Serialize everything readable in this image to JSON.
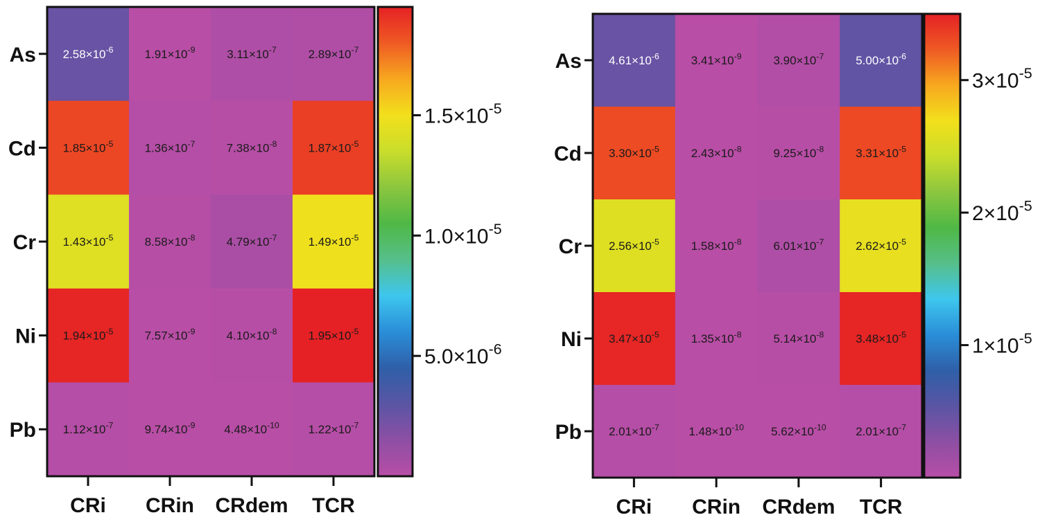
{
  "chart_data": [
    {
      "type": "heatmap",
      "rows": [
        "As",
        "Cd",
        "Cr",
        "Ni",
        "Pb"
      ],
      "columns": [
        "CRi",
        "CRin",
        "CRdem",
        "TCR"
      ],
      "values": [
        [
          2.58e-06,
          1.91e-09,
          3.11e-07,
          2.89e-07
        ],
        [
          1.85e-05,
          1.36e-07,
          7.38e-08,
          1.87e-05
        ],
        [
          1.43e-05,
          8.58e-08,
          4.79e-07,
          1.49e-05
        ],
        [
          1.94e-05,
          7.57e-09,
          4.1e-08,
          1.95e-05
        ],
        [
          1.12e-07,
          9.74e-09,
          4.48e-10,
          1.22e-07
        ]
      ],
      "labels": [
        [
          [
            "2.58×10",
            "-6"
          ],
          [
            "1.91×10",
            "-9"
          ],
          [
            "3.11×10",
            "-7"
          ],
          [
            "2.89×10",
            "-7"
          ]
        ],
        [
          [
            "1.85×10",
            "-5"
          ],
          [
            "1.36×10",
            "-7"
          ],
          [
            "7.38×10",
            "-8"
          ],
          [
            "1.87×10",
            "-5"
          ]
        ],
        [
          [
            "1.43×10",
            "-5"
          ],
          [
            "8.58×10",
            "-8"
          ],
          [
            "4.79×10",
            "-7"
          ],
          [
            "1.49×10",
            "-5"
          ]
        ],
        [
          [
            "1.94×10",
            "-5"
          ],
          [
            "7.57×10",
            "-9"
          ],
          [
            "4.10×10",
            "-8"
          ],
          [
            "1.95×10",
            "-5"
          ]
        ],
        [
          [
            "1.12×10",
            "-7"
          ],
          [
            "9.74×10",
            "-9"
          ],
          [
            "4.48×10",
            "-10"
          ],
          [
            "1.22×10",
            "-7"
          ]
        ]
      ],
      "colorbar": {
        "range": [
          0,
          1.95e-05
        ],
        "ticks": [
          5e-06,
          1e-05,
          1.5e-05
        ],
        "tick_labels": [
          [
            "5.0×10",
            "-6"
          ],
          [
            "1.0×10",
            "-5"
          ],
          [
            "1.5×10",
            "-5"
          ]
        ]
      }
    },
    {
      "type": "heatmap",
      "rows": [
        "As",
        "Cd",
        "Cr",
        "Ni",
        "Pb"
      ],
      "columns": [
        "CRi",
        "CRin",
        "CRdem",
        "TCR"
      ],
      "values": [
        [
          4.61e-06,
          3.41e-09,
          3.9e-07,
          5e-06
        ],
        [
          3.3e-05,
          2.43e-08,
          9.25e-08,
          3.31e-05
        ],
        [
          2.56e-05,
          1.58e-08,
          6.01e-07,
          2.62e-05
        ],
        [
          3.47e-05,
          1.35e-08,
          5.14e-08,
          3.48e-05
        ],
        [
          2.01e-07,
          1.48e-10,
          5.62e-10,
          2.01e-07
        ]
      ],
      "labels": [
        [
          [
            "4.61×10",
            "-6"
          ],
          [
            "3.41×10",
            "-9"
          ],
          [
            "3.90×10",
            "-7"
          ],
          [
            "5.00×10",
            "-6"
          ]
        ],
        [
          [
            "3.30×10",
            "-5"
          ],
          [
            "2.43×10",
            "-8"
          ],
          [
            "9.25×10",
            "-8"
          ],
          [
            "3.31×10",
            "-5"
          ]
        ],
        [
          [
            "2.56×10",
            "-5"
          ],
          [
            "1.58×10",
            "-8"
          ],
          [
            "6.01×10",
            "-7"
          ],
          [
            "2.62×10",
            "-5"
          ]
        ],
        [
          [
            "3.47×10",
            "-5"
          ],
          [
            "1.35×10",
            "-8"
          ],
          [
            "5.14×10",
            "-8"
          ],
          [
            "3.48×10",
            "-5"
          ]
        ],
        [
          [
            "2.01×10",
            "-7"
          ],
          [
            "1.48×10",
            "-10"
          ],
          [
            "5.62×10",
            "-10"
          ],
          [
            "2.01×10",
            "-7"
          ]
        ]
      ],
      "colorbar": {
        "range": [
          0,
          3.5e-05
        ],
        "ticks": [
          1e-05,
          2e-05,
          3e-05
        ],
        "tick_labels": [
          [
            "1×10",
            "-5"
          ],
          [
            "2×10",
            "-5"
          ],
          [
            "3×10",
            "-5"
          ]
        ]
      }
    }
  ],
  "colors": {
    "colormap": [
      "#b84ea6",
      "#8d4fa4",
      "#5a55a4",
      "#2f5fa8",
      "#2a8ed8",
      "#3ec6ee",
      "#56bf8a",
      "#4fb845",
      "#8cc63f",
      "#c9dd2b",
      "#f2e01c",
      "#f7a81f",
      "#ef5a24",
      "#e52125"
    ],
    "frame": "#111111"
  }
}
